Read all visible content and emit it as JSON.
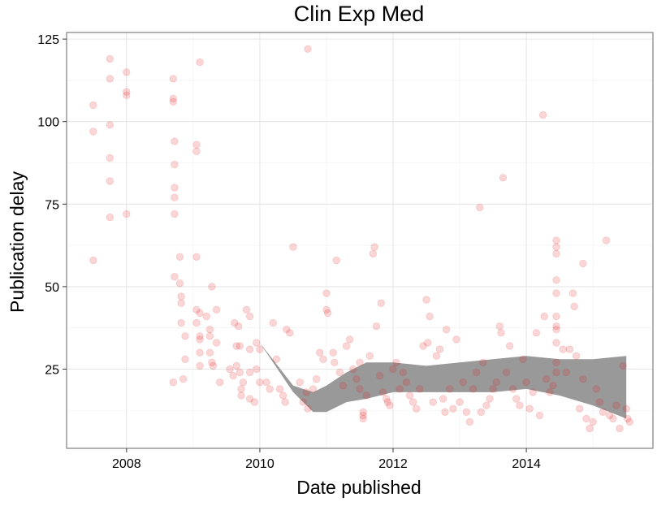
{
  "chart_data": {
    "type": "scatter",
    "title": "Clin Exp Med",
    "xlabel": "Date published",
    "ylabel": "Publication delay",
    "xlim": [
      2007.1,
      2015.9
    ],
    "ylim": [
      1,
      127
    ],
    "x_ticks": [
      2008,
      2010,
      2012,
      2014
    ],
    "x_tick_labels": [
      "2008",
      "2010",
      "2012",
      "2014"
    ],
    "y_ticks": [
      25,
      50,
      75,
      100,
      125
    ],
    "y_tick_labels": [
      "25",
      "50",
      "75",
      "100",
      "125"
    ],
    "grid": true,
    "legend": "none",
    "point_color": "#e41a1c",
    "point_alpha": 0.18,
    "band_color": "#999999",
    "series": [
      {
        "type": "scatter",
        "points": [
          [
            2007.5,
            105
          ],
          [
            2007.5,
            97
          ],
          [
            2007.5,
            58
          ],
          [
            2007.75,
            119
          ],
          [
            2007.75,
            113
          ],
          [
            2007.75,
            99
          ],
          [
            2007.75,
            89
          ],
          [
            2007.75,
            82
          ],
          [
            2007.75,
            71
          ],
          [
            2008.0,
            115
          ],
          [
            2008.0,
            109
          ],
          [
            2008.0,
            108
          ],
          [
            2008.0,
            72
          ],
          [
            2008.7,
            113
          ],
          [
            2008.7,
            107
          ],
          [
            2008.7,
            106
          ],
          [
            2008.72,
            94
          ],
          [
            2008.72,
            87
          ],
          [
            2008.72,
            80
          ],
          [
            2008.72,
            77
          ],
          [
            2008.72,
            72
          ],
          [
            2008.72,
            53
          ],
          [
            2008.7,
            21
          ],
          [
            2008.8,
            59
          ],
          [
            2008.8,
            51
          ],
          [
            2008.82,
            47
          ],
          [
            2008.82,
            45
          ],
          [
            2008.82,
            39
          ],
          [
            2008.85,
            22
          ],
          [
            2008.88,
            35
          ],
          [
            2008.88,
            28
          ],
          [
            2009.05,
            93
          ],
          [
            2009.05,
            91
          ],
          [
            2009.05,
            59
          ],
          [
            2009.05,
            43
          ],
          [
            2009.05,
            39
          ],
          [
            2009.1,
            118
          ],
          [
            2009.1,
            42
          ],
          [
            2009.1,
            35
          ],
          [
            2009.1,
            34
          ],
          [
            2009.1,
            30
          ],
          [
            2009.1,
            26
          ],
          [
            2009.2,
            41
          ],
          [
            2009.25,
            37
          ],
          [
            2009.25,
            35
          ],
          [
            2009.25,
            30
          ],
          [
            2009.28,
            50
          ],
          [
            2009.28,
            27
          ],
          [
            2009.3,
            26
          ],
          [
            2009.35,
            43
          ],
          [
            2009.35,
            33
          ],
          [
            2009.4,
            21
          ],
          [
            2009.55,
            25
          ],
          [
            2009.6,
            23
          ],
          [
            2009.62,
            39
          ],
          [
            2009.65,
            32
          ],
          [
            2009.65,
            26
          ],
          [
            2009.68,
            38
          ],
          [
            2009.7,
            32
          ],
          [
            2009.7,
            24
          ],
          [
            2009.72,
            19
          ],
          [
            2009.72,
            17
          ],
          [
            2009.75,
            21
          ],
          [
            2009.8,
            43
          ],
          [
            2009.85,
            41
          ],
          [
            2009.85,
            31
          ],
          [
            2009.85,
            24
          ],
          [
            2009.85,
            16
          ],
          [
            2009.92,
            15
          ],
          [
            2009.95,
            33
          ],
          [
            2009.95,
            25
          ],
          [
            2010.0,
            31
          ],
          [
            2010.0,
            21
          ],
          [
            2010.1,
            21
          ],
          [
            2010.15,
            19
          ],
          [
            2010.2,
            39
          ],
          [
            2010.25,
            28
          ],
          [
            2010.3,
            19
          ],
          [
            2010.35,
            17
          ],
          [
            2010.38,
            15
          ],
          [
            2010.4,
            37
          ],
          [
            2010.45,
            36
          ],
          [
            2010.5,
            62
          ],
          [
            2010.6,
            21
          ],
          [
            2010.65,
            15
          ],
          [
            2010.7,
            18
          ],
          [
            2010.72,
            122
          ],
          [
            2010.72,
            13
          ],
          [
            2010.8,
            19
          ],
          [
            2010.85,
            22
          ],
          [
            2010.9,
            30
          ],
          [
            2010.95,
            28
          ],
          [
            2011.0,
            48
          ],
          [
            2011.0,
            43
          ],
          [
            2011.02,
            42
          ],
          [
            2011.1,
            30
          ],
          [
            2011.12,
            27
          ],
          [
            2011.15,
            58
          ],
          [
            2011.2,
            24
          ],
          [
            2011.25,
            20
          ],
          [
            2011.3,
            32
          ],
          [
            2011.35,
            34
          ],
          [
            2011.4,
            25
          ],
          [
            2011.45,
            22
          ],
          [
            2011.5,
            27
          ],
          [
            2011.5,
            19
          ],
          [
            2011.55,
            12
          ],
          [
            2011.55,
            11
          ],
          [
            2011.55,
            10
          ],
          [
            2011.6,
            17
          ],
          [
            2011.65,
            29
          ],
          [
            2011.7,
            60
          ],
          [
            2011.72,
            62
          ],
          [
            2011.75,
            38
          ],
          [
            2011.8,
            23
          ],
          [
            2011.82,
            45
          ],
          [
            2011.85,
            18
          ],
          [
            2011.9,
            16
          ],
          [
            2011.92,
            15
          ],
          [
            2011.95,
            14
          ],
          [
            2012.0,
            25
          ],
          [
            2012.05,
            27
          ],
          [
            2012.1,
            19
          ],
          [
            2012.15,
            24
          ],
          [
            2012.2,
            21
          ],
          [
            2012.25,
            17
          ],
          [
            2012.3,
            15
          ],
          [
            2012.35,
            13
          ],
          [
            2012.4,
            19
          ],
          [
            2012.45,
            32
          ],
          [
            2012.5,
            46
          ],
          [
            2012.52,
            33
          ],
          [
            2012.55,
            41
          ],
          [
            2012.6,
            15
          ],
          [
            2012.65,
            29
          ],
          [
            2012.7,
            31
          ],
          [
            2012.75,
            16
          ],
          [
            2012.78,
            12
          ],
          [
            2012.8,
            37
          ],
          [
            2012.85,
            19
          ],
          [
            2012.9,
            13
          ],
          [
            2012.95,
            34
          ],
          [
            2013.0,
            15
          ],
          [
            2013.05,
            21
          ],
          [
            2013.1,
            12
          ],
          [
            2013.15,
            9
          ],
          [
            2013.2,
            19
          ],
          [
            2013.25,
            24
          ],
          [
            2013.3,
            74
          ],
          [
            2013.32,
            12
          ],
          [
            2013.35,
            27
          ],
          [
            2013.4,
            14
          ],
          [
            2013.45,
            16
          ],
          [
            2013.5,
            19
          ],
          [
            2013.55,
            21
          ],
          [
            2013.6,
            38
          ],
          [
            2013.62,
            36
          ],
          [
            2013.65,
            83
          ],
          [
            2013.7,
            24
          ],
          [
            2013.75,
            32
          ],
          [
            2013.8,
            19
          ],
          [
            2013.85,
            16
          ],
          [
            2013.9,
            14
          ],
          [
            2013.95,
            28
          ],
          [
            2014.0,
            21
          ],
          [
            2014.05,
            13
          ],
          [
            2014.1,
            18
          ],
          [
            2014.15,
            36
          ],
          [
            2014.2,
            11
          ],
          [
            2014.25,
            102
          ],
          [
            2014.27,
            41
          ],
          [
            2014.3,
            22
          ],
          [
            2014.35,
            18
          ],
          [
            2014.4,
            20
          ],
          [
            2014.45,
            64
          ],
          [
            2014.45,
            62
          ],
          [
            2014.45,
            60
          ],
          [
            2014.45,
            52
          ],
          [
            2014.45,
            48
          ],
          [
            2014.45,
            41
          ],
          [
            2014.45,
            38
          ],
          [
            2014.45,
            37
          ],
          [
            2014.45,
            33
          ],
          [
            2014.45,
            27
          ],
          [
            2014.45,
            24
          ],
          [
            2014.55,
            31
          ],
          [
            2014.6,
            24
          ],
          [
            2014.65,
            31
          ],
          [
            2014.7,
            48
          ],
          [
            2014.72,
            44
          ],
          [
            2014.75,
            29
          ],
          [
            2014.8,
            13
          ],
          [
            2014.85,
            57
          ],
          [
            2014.85,
            22
          ],
          [
            2014.9,
            10
          ],
          [
            2014.95,
            7
          ],
          [
            2015.0,
            9
          ],
          [
            2015.05,
            19
          ],
          [
            2015.1,
            15
          ],
          [
            2015.15,
            12
          ],
          [
            2015.2,
            64
          ],
          [
            2015.25,
            11
          ],
          [
            2015.3,
            10
          ],
          [
            2015.35,
            14
          ],
          [
            2015.4,
            7
          ],
          [
            2015.45,
            26
          ],
          [
            2015.5,
            13
          ],
          [
            2015.52,
            10
          ],
          [
            2015.55,
            9
          ]
        ]
      },
      {
        "type": "smooth_band",
        "x": [
          2007.9,
          2008.5,
          2009.0,
          2009.5,
          2010.0,
          2010.5,
          2010.8,
          2011.0,
          2011.3,
          2011.6,
          2012.0,
          2012.5,
          2013.0,
          2013.5,
          2014.0,
          2014.5,
          2015.0,
          2015.5
        ],
        "upper": [
          128,
          100,
          75,
          51,
          33,
          20,
          18,
          20,
          24,
          27,
          27,
          26,
          27,
          28,
          29,
          28,
          28,
          29
        ],
        "lower": [
          128,
          100,
          75,
          51,
          33,
          18,
          12,
          12,
          15,
          16,
          18,
          18,
          18,
          18,
          19,
          17,
          14,
          10
        ]
      }
    ]
  }
}
